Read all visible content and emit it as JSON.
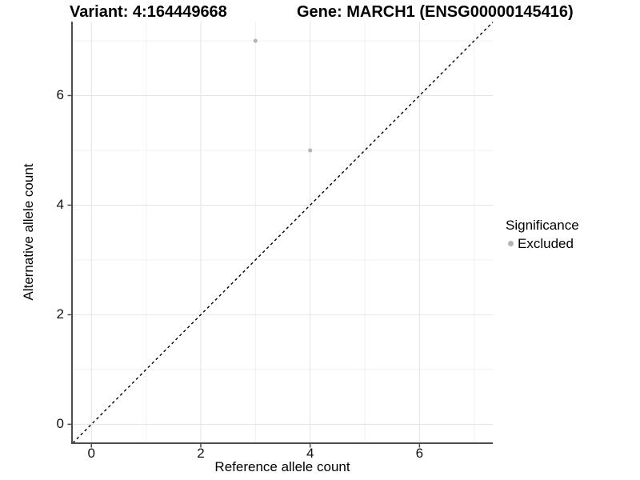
{
  "chart_data": {
    "type": "scatter",
    "title_left": "Variant: 4:164449668",
    "title_right": "Gene: MARCH1 (ENSG00000145416)",
    "xlabel": "Reference allele count",
    "ylabel": "Alternative allele count",
    "xlim": [
      -0.34,
      7.34
    ],
    "ylim": [
      -0.33,
      7.35
    ],
    "x_ticks": [
      0,
      2,
      4,
      6
    ],
    "y_ticks": [
      0,
      2,
      4,
      6
    ],
    "x_minor_gridlines": [
      1,
      3,
      5,
      7
    ],
    "y_minor_gridlines": [
      1,
      3,
      5,
      7
    ],
    "grid": true,
    "legend_position": "right",
    "reference_line": {
      "kind": "abline",
      "slope": 1,
      "intercept": 0,
      "style": "dashed",
      "color": "#000000"
    },
    "series": [
      {
        "name": "Excluded",
        "color": "#b5b5b5",
        "points": [
          {
            "x": 3,
            "y": 7
          },
          {
            "x": 4,
            "y": 5
          }
        ]
      }
    ],
    "legend": {
      "title": "Significance",
      "items": [
        {
          "label": "Excluded",
          "color": "#b5b5b5"
        }
      ]
    }
  },
  "style": {
    "background": "#ffffff",
    "grid_major_color": "#e4e4e4",
    "grid_minor_color": "#f0f0f0",
    "axis_line_color": "#4d4d4d",
    "tick_color": "#4d4d4d",
    "text_color": "#000000",
    "point_color": "#b5b5b5"
  }
}
